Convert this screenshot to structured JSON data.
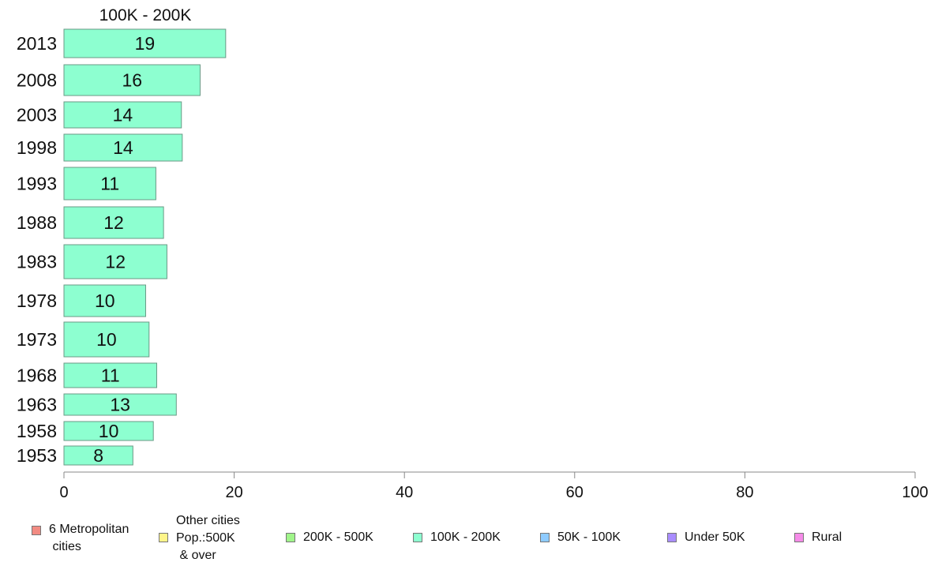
{
  "chart_data": {
    "type": "bar",
    "orientation": "horizontal",
    "title": "100K - 200K",
    "categories": [
      "2013",
      "2008",
      "2003",
      "1998",
      "1993",
      "1988",
      "1983",
      "1978",
      "1973",
      "1968",
      "1963",
      "1958",
      "1953"
    ],
    "series": [
      {
        "name": "100K - 200K",
        "values": [
          19,
          16,
          13.8,
          13.9,
          10.8,
          11.7,
          12.1,
          9.6,
          10,
          10.9,
          13.2,
          10.5,
          8.1
        ],
        "labels": [
          "19",
          "16",
          "14",
          "14",
          "11",
          "12",
          "12",
          "10",
          "10",
          "11",
          "13",
          "10",
          "8"
        ],
        "color": "#8dffd0"
      }
    ],
    "xlim": [
      0,
      100
    ],
    "xticks": [
      "0",
      "20",
      "40",
      "60",
      "80",
      "100"
    ],
    "xlabel": "",
    "ylabel": "",
    "grid": false,
    "legend_position": "bottom",
    "legend": [
      {
        "label": "6 Metropolitan\n cities",
        "color": "#f28b82"
      },
      {
        "label": "Other cities\nPop.:500K\n & over",
        "color": "#fff58a"
      },
      {
        "label": "200K - 500K",
        "color": "#a0f58a"
      },
      {
        "label": "100K - 200K",
        "color": "#8dffd0"
      },
      {
        "label": "50K - 100K",
        "color": "#8ecbff"
      },
      {
        "label": "Under 50K",
        "color": "#a98dff"
      },
      {
        "label": "Rural",
        "color": "#f58be8"
      }
    ]
  }
}
